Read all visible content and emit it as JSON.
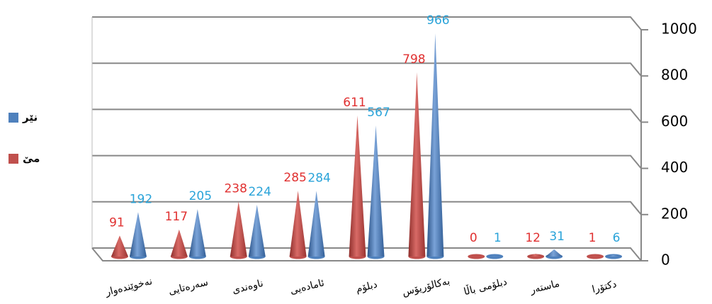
{
  "chart_data": {
    "type": "cone",
    "categories": [
      "نەخوێندەوار",
      "سەرەتایی",
      "ناوەندی",
      "ئامادەیی",
      "دبلۆم",
      "بەکالۆریۆس",
      "دبلۆمی باڵا",
      "ماستەر",
      "دکتۆرا"
    ],
    "series": [
      {
        "name": "مێ",
        "color": "#c0504d",
        "values": [
          91,
          117,
          238,
          285,
          611,
          798,
          0,
          12,
          1
        ]
      },
      {
        "name": "نێر",
        "color": "#4f81bd",
        "values": [
          192,
          205,
          224,
          284,
          567,
          966,
          1,
          31,
          6
        ]
      }
    ],
    "value_label_colors": [
      "#e03030",
      "#29a3d9"
    ],
    "ylim": [
      0,
      1000
    ],
    "yticks": [
      0,
      200,
      400,
      600,
      800,
      1000
    ],
    "grid": true
  }
}
